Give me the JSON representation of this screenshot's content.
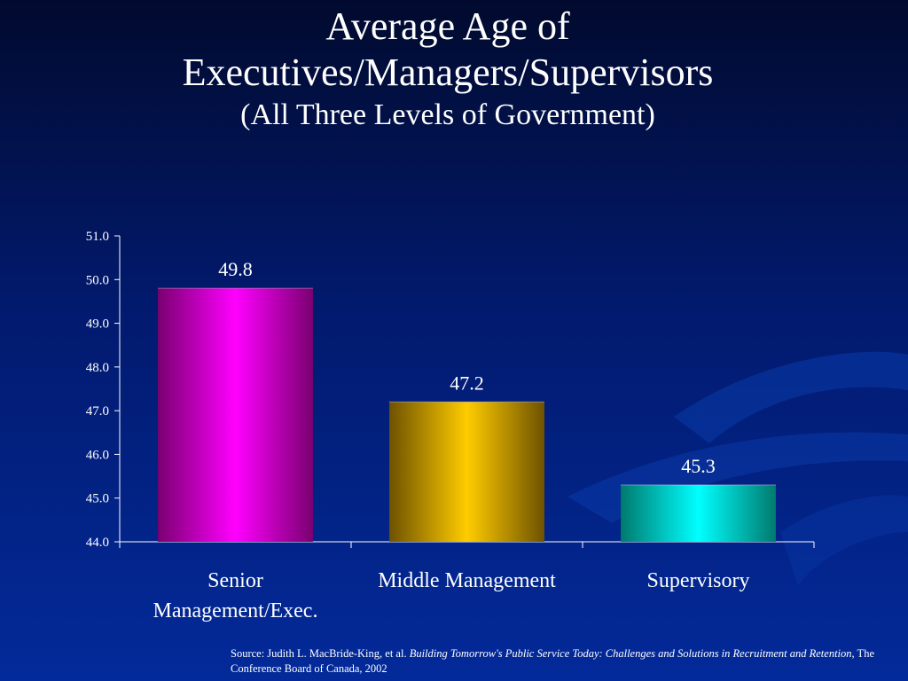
{
  "slide": {
    "title_line1": "Average Age of",
    "title_line2": "Executives/Managers/Supervisors",
    "subtitle": "(All Three Levels of Government)"
  },
  "chart_data": {
    "type": "bar",
    "categories": [
      "Senior Management/Exec.",
      "Middle Management",
      "Supervisory"
    ],
    "category_lines": [
      [
        "Senior",
        "Management/Exec."
      ],
      [
        "Middle Management"
      ],
      [
        "Supervisory"
      ]
    ],
    "values": [
      49.8,
      47.2,
      45.3
    ],
    "data_labels": [
      "49.8",
      "47.2",
      "45.3"
    ],
    "bar_colors": [
      "#ff00ff",
      "#ffcc00",
      "#00ffff"
    ],
    "bar_shade_colors": [
      "#7a0070",
      "#6e5200",
      "#007a6e"
    ],
    "ylim": [
      44.0,
      51.0
    ],
    "yticks": [
      "44.0",
      "45.0",
      "46.0",
      "47.0",
      "48.0",
      "49.0",
      "50.0",
      "51.0"
    ],
    "title": "Average Age of Executives/Managers/Supervisors",
    "subtitle": "(All Three Levels of Government)",
    "grid": false,
    "legend": "none"
  },
  "source": {
    "prefix": "Source:  Judith L. MacBride-King, et al.  ",
    "book_title": "Building Tomorrow's Public Service Today:  Challenges and Solutions in Recruitment and Retention",
    "suffix": ", The Conference Board of Canada, 2002"
  },
  "colors": {
    "background_top": "#010a2e",
    "background_bottom": "#032a9a",
    "text": "#ffffff"
  }
}
